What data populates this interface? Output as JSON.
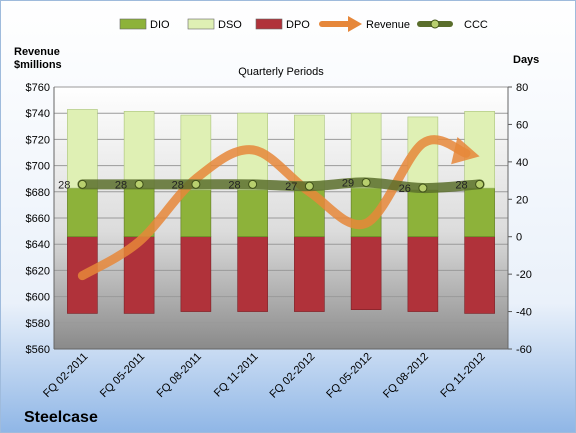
{
  "chart_data": {
    "type": "bar",
    "title": "Quarterly Periods",
    "company": "Steelcase",
    "left_axis_title": [
      "Revenue",
      "$millions"
    ],
    "right_axis_title": "Days",
    "categories": [
      "FQ 02-2011",
      "FQ 05-2011",
      "FQ 08-2011",
      "FQ 11-2011",
      "FQ 02-2012",
      "FQ 05-2012",
      "FQ 08-2012",
      "FQ 11-2012"
    ],
    "left_axis": {
      "min": 560,
      "max": 760,
      "step": 20,
      "tick_prefix": "$"
    },
    "right_axis": {
      "min": -60,
      "max": 80,
      "step": 20
    },
    "series": [
      {
        "name": "DIO",
        "type": "stacked-bar",
        "axis": "right",
        "color": "#8db23a",
        "values": [
          26,
          26,
          25,
          25,
          25,
          26,
          25,
          26
        ]
      },
      {
        "name": "DSO",
        "type": "stacked-bar",
        "axis": "right",
        "color": "#dff0b4",
        "values": [
          42,
          41,
          40,
          41,
          40,
          40,
          39,
          41
        ]
      },
      {
        "name": "DPO",
        "type": "negative-bar",
        "axis": "right",
        "color": "#b0323a",
        "values": [
          -41,
          -41,
          -40,
          -40,
          -40,
          -39,
          -40,
          -41
        ]
      },
      {
        "name": "Revenue",
        "type": "line",
        "axis": "left",
        "color": "#e6873a",
        "values": [
          616,
          642,
          690,
          712,
          680,
          656,
          717,
          707
        ]
      },
      {
        "name": "CCC",
        "type": "line",
        "axis": "right",
        "color": "#5a6e2c",
        "values": [
          28,
          28,
          28,
          28,
          27,
          29,
          26,
          28
        ]
      }
    ],
    "ccc_labels": [
      "28",
      "28",
      "28",
      "28",
      "27",
      "29",
      "26",
      "28"
    ],
    "legend": [
      "DIO",
      "DSO",
      "DPO",
      "Revenue",
      "CCC"
    ],
    "legend_position": "top",
    "grid": true
  }
}
